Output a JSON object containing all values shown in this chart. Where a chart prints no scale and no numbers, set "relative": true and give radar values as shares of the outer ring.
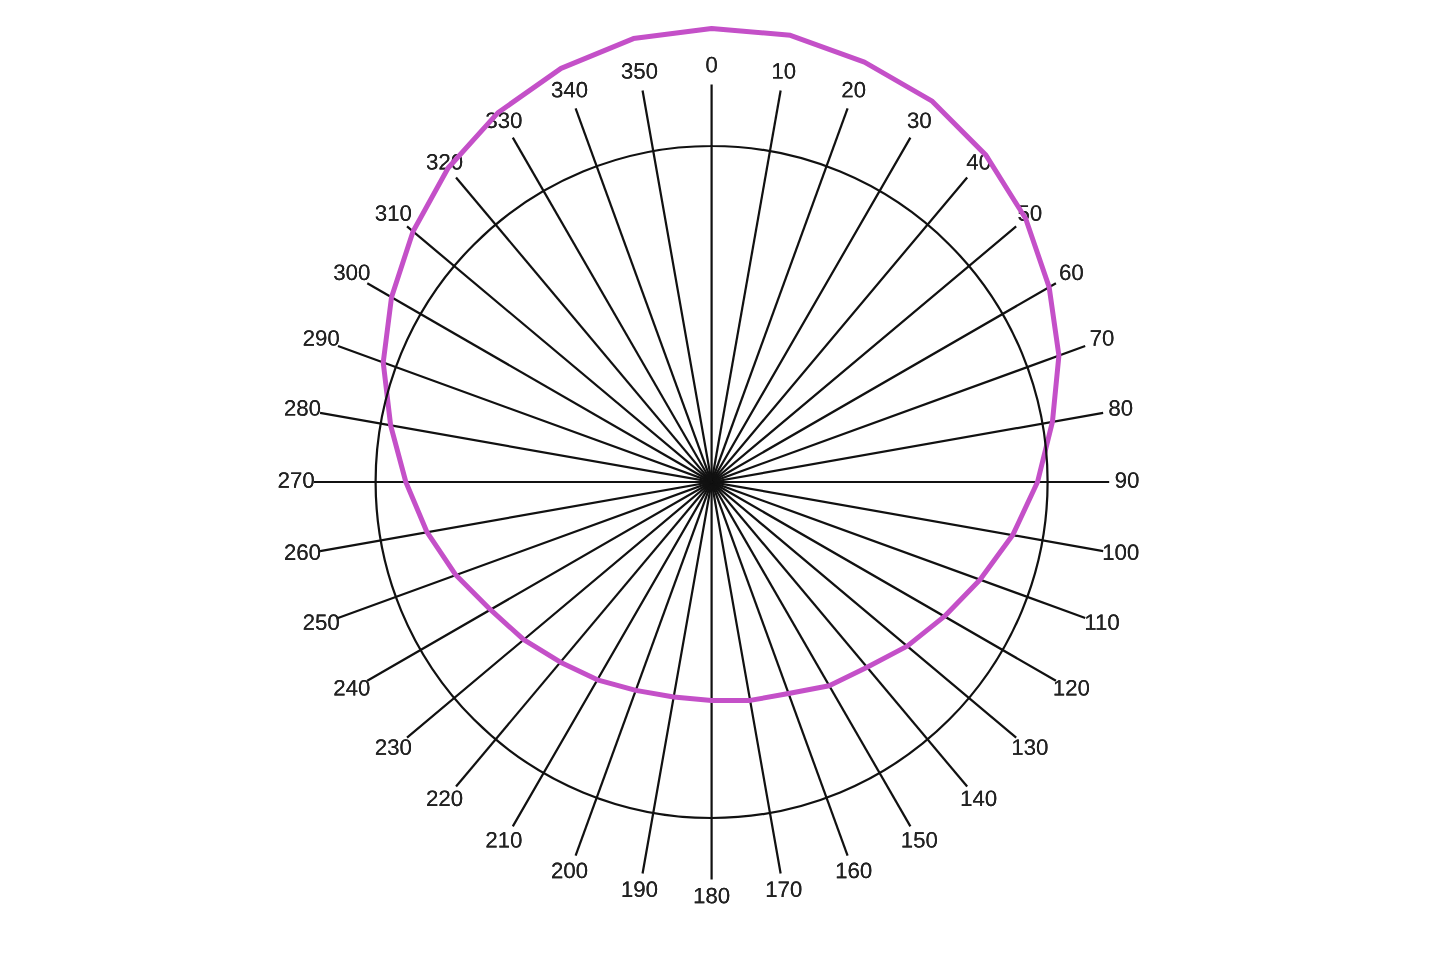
{
  "chart_data": {
    "type": "radar",
    "relative": true,
    "grid": true,
    "categories": [
      "0",
      "10",
      "20",
      "30",
      "40",
      "50",
      "60",
      "70",
      "80",
      "90",
      "100",
      "110",
      "120",
      "130",
      "140",
      "150",
      "160",
      "170",
      "180",
      "190",
      "200",
      "210",
      "220",
      "230",
      "240",
      "250",
      "260",
      "270",
      "280",
      "290",
      "300",
      "310",
      "320",
      "330",
      "340",
      "350"
    ],
    "series": [
      {
        "color": "#c450c8",
        "values": [
          1.35,
          1.35,
          1.33,
          1.31,
          1.27,
          1.22,
          1.16,
          1.1,
          1.03,
          0.97,
          0.91,
          0.85,
          0.8,
          0.76,
          0.72,
          0.7,
          0.67,
          0.66,
          0.65,
          0.65,
          0.66,
          0.68,
          0.7,
          0.73,
          0.76,
          0.81,
          0.86,
          0.91,
          0.97,
          1.04,
          1.1,
          1.16,
          1.22,
          1.27,
          1.31,
          1.34
        ]
      }
    ]
  }
}
